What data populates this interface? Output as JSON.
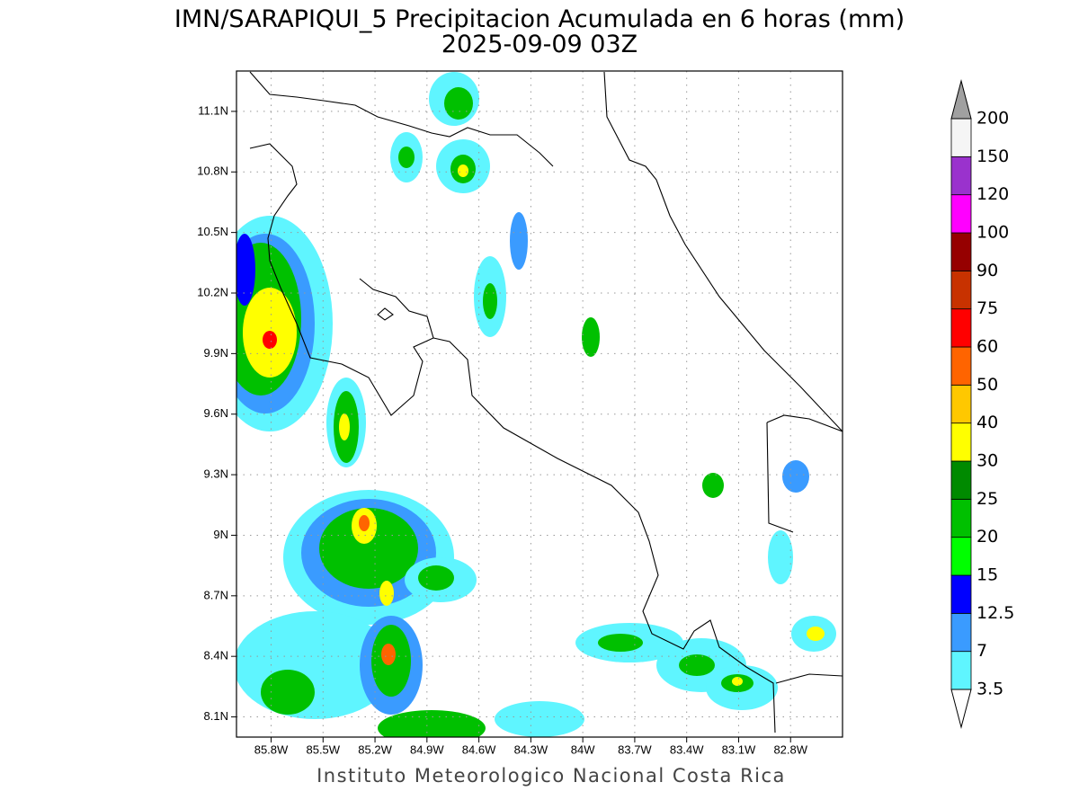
{
  "title": "IMN/SARAPIQUI_5 Precipitacion Acumulada en 6 horas (mm)",
  "subtitle": "2025-09-09 03Z",
  "footer": "Instituto Meteorologico Nacional Costa Rica",
  "map": {
    "lonlim": [
      -86.0,
      -82.5
    ],
    "latlim": [
      8.0,
      11.3
    ],
    "lon_ticks": [
      {
        "value": -85.8,
        "label": "85.8W"
      },
      {
        "value": -85.5,
        "label": "85.5W"
      },
      {
        "value": -85.2,
        "label": "85.2W"
      },
      {
        "value": -84.9,
        "label": "84.9W"
      },
      {
        "value": -84.6,
        "label": "84.6W"
      },
      {
        "value": -84.3,
        "label": "84.3W"
      },
      {
        "value": -84.0,
        "label": "84W"
      },
      {
        "value": -83.7,
        "label": "83.7W"
      },
      {
        "value": -83.4,
        "label": "83.4W"
      },
      {
        "value": -83.1,
        "label": "83.1W"
      },
      {
        "value": -82.8,
        "label": "82.8W"
      }
    ],
    "lat_ticks": [
      {
        "value": 11.1,
        "label": "11.1N"
      },
      {
        "value": 10.8,
        "label": "10.8N"
      },
      {
        "value": 10.5,
        "label": "10.5N"
      },
      {
        "value": 10.2,
        "label": "10.2N"
      },
      {
        "value": 9.9,
        "label": "9.9N"
      },
      {
        "value": 9.6,
        "label": "9.6N"
      },
      {
        "value": 9.3,
        "label": "9.3N"
      },
      {
        "value": 9.0,
        "label": "9N"
      },
      {
        "value": 8.7,
        "label": "8.7N"
      },
      {
        "value": 8.4,
        "label": "8.4N"
      },
      {
        "value": 8.1,
        "label": "8.1N"
      }
    ]
  },
  "colorbar": {
    "levels": [
      3.5,
      7,
      12.5,
      15,
      20,
      25,
      30,
      40,
      50,
      60,
      75,
      90,
      100,
      120,
      150,
      200
    ],
    "colors": [
      "#5ff5ff",
      "#3a9bff",
      "#0000ff",
      "#00ff00",
      "#00c000",
      "#008a00",
      "#ffff00",
      "#ffc800",
      "#ff6400",
      "#ff0000",
      "#c83200",
      "#960000",
      "#ff00ff",
      "#9a32cd",
      "#f5f5f5"
    ],
    "under_color": "#ffffff",
    "over_color": "#a0a0a0"
  }
}
